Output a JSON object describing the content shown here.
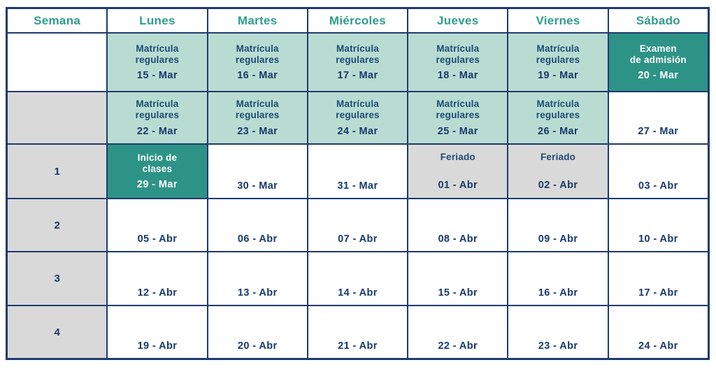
{
  "colors": {
    "border_navy": "#1e3a6d",
    "header_teal": "#2f9d8c",
    "teal_light": "#b8dcd2",
    "teal_dark": "#2e9387",
    "gray": "#d9d9d9",
    "label_navy": "#1d4a73",
    "date_navy": "#18396b",
    "white_text": "#ffffff"
  },
  "table": {
    "headers": [
      "Semana",
      "Lunes",
      "Martes",
      "Miércoles",
      "Jueves",
      "Viernes",
      "Sábado"
    ],
    "rows": [
      {
        "cells": [
          {
            "bg": "white",
            "layout": "empty"
          },
          {
            "label": "Matrícula\nregulares",
            "date": "15 - Mar",
            "bg": "teal",
            "layout": "center"
          },
          {
            "label": "Matrícula\nregulares",
            "date": "16 - Mar",
            "bg": "teal",
            "layout": "center"
          },
          {
            "label": "Matrícula\nregulares",
            "date": "17 - Mar",
            "bg": "teal",
            "layout": "center"
          },
          {
            "label": "Matrícula\nregulares",
            "date": "18 - Mar",
            "bg": "teal",
            "layout": "center"
          },
          {
            "label": "Matrícula\nregulares",
            "date": "19 - Mar",
            "bg": "teal",
            "layout": "center"
          },
          {
            "label": "Examen\nde admisión",
            "date": "20 - Mar",
            "bg": "teal-dark",
            "layout": "center",
            "light": true
          }
        ]
      },
      {
        "cells": [
          {
            "bg": "gray",
            "layout": "empty"
          },
          {
            "label": "Matrícula\nregulares",
            "date": "22 - Mar",
            "bg": "teal",
            "layout": "center"
          },
          {
            "label": "Matrícula\nregulares",
            "date": "23 - Mar",
            "bg": "teal",
            "layout": "center"
          },
          {
            "label": "Matrícula\nregulares",
            "date": "24 - Mar",
            "bg": "teal",
            "layout": "center"
          },
          {
            "label": "Matrícula\nregulares",
            "date": "25 - Mar",
            "bg": "teal",
            "layout": "center"
          },
          {
            "label": "Matrícula\nregulares",
            "date": "26 - Mar",
            "bg": "teal",
            "layout": "center"
          },
          {
            "date": "27 - Mar",
            "bg": "white",
            "layout": "bottom"
          }
        ]
      },
      {
        "cells": [
          {
            "week": "1",
            "bg": "gray",
            "layout": "week"
          },
          {
            "label": "Inicio de\nclases",
            "date": "29 - Mar",
            "bg": "teal-dark",
            "layout": "center",
            "light": true
          },
          {
            "date": "30 - Mar",
            "bg": "white",
            "layout": "bottom"
          },
          {
            "date": "31 - Mar",
            "bg": "white",
            "layout": "bottom"
          },
          {
            "label": "Feriado",
            "date": "01 - Abr",
            "bg": "gray",
            "layout": "split"
          },
          {
            "label": "Feriado",
            "date": "02 - Abr",
            "bg": "gray",
            "layout": "split"
          },
          {
            "date": "03 - Abr",
            "bg": "white",
            "layout": "bottom"
          }
        ]
      },
      {
        "cells": [
          {
            "week": "2",
            "bg": "gray",
            "layout": "week"
          },
          {
            "date": "05 - Abr",
            "bg": "white",
            "layout": "bottom"
          },
          {
            "date": "06 - Abr",
            "bg": "white",
            "layout": "bottom"
          },
          {
            "date": "07 - Abr",
            "bg": "white",
            "layout": "bottom"
          },
          {
            "date": "08 - Abr",
            "bg": "white",
            "layout": "bottom"
          },
          {
            "date": "09 - Abr",
            "bg": "white",
            "layout": "bottom"
          },
          {
            "date": "10 - Abr",
            "bg": "white",
            "layout": "bottom"
          }
        ]
      },
      {
        "cells": [
          {
            "week": "3",
            "bg": "gray",
            "layout": "week"
          },
          {
            "date": "12 - Abr",
            "bg": "white",
            "layout": "bottom"
          },
          {
            "date": "13 - Abr",
            "bg": "white",
            "layout": "bottom"
          },
          {
            "date": "14 - Abr",
            "bg": "white",
            "layout": "bottom"
          },
          {
            "date": "15 - Abr",
            "bg": "white",
            "layout": "bottom"
          },
          {
            "date": "16 - Abr",
            "bg": "white",
            "layout": "bottom"
          },
          {
            "date": "17 - Abr",
            "bg": "white",
            "layout": "bottom"
          }
        ]
      },
      {
        "cells": [
          {
            "week": "4",
            "bg": "gray",
            "layout": "week"
          },
          {
            "date": "19 - Abr",
            "bg": "white",
            "layout": "bottom"
          },
          {
            "date": "20 - Abr",
            "bg": "white",
            "layout": "bottom"
          },
          {
            "date": "21 - Abr",
            "bg": "white",
            "layout": "bottom"
          },
          {
            "date": "22 - Abr",
            "bg": "white",
            "layout": "bottom"
          },
          {
            "date": "23 - Abr",
            "bg": "white",
            "layout": "bottom"
          },
          {
            "date": "24 - Abr",
            "bg": "white",
            "layout": "bottom"
          }
        ]
      }
    ]
  }
}
